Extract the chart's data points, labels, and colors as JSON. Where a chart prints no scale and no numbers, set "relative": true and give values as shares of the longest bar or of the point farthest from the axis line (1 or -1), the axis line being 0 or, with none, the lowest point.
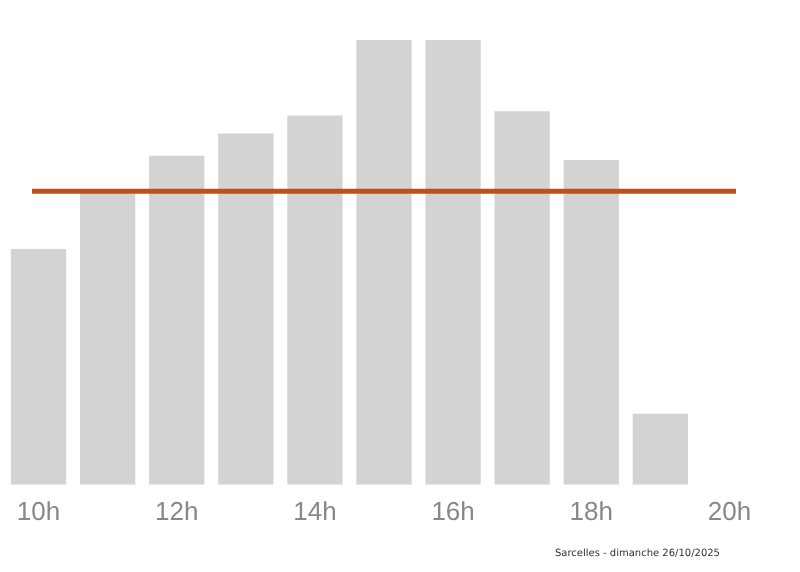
{
  "chart_data": {
    "type": "bar",
    "relative": true,
    "categories": [
      "10h",
      null,
      "12h",
      null,
      "14h",
      null,
      "16h",
      null,
      "18h",
      null,
      "20h"
    ],
    "values": [
      0.53,
      0.66,
      0.74,
      0.79,
      0.83,
      1,
      1,
      0.84,
      0.73,
      0.16,
      null
    ],
    "color": "#d3d3d3",
    "ref_lines": [
      {
        "axis": "y",
        "value": 0.66,
        "color": "#c0501a"
      }
    ],
    "annotations": [
      "Sarcelles - dimanche 26/10/2025"
    ],
    "grid": false,
    "legend": false
  }
}
